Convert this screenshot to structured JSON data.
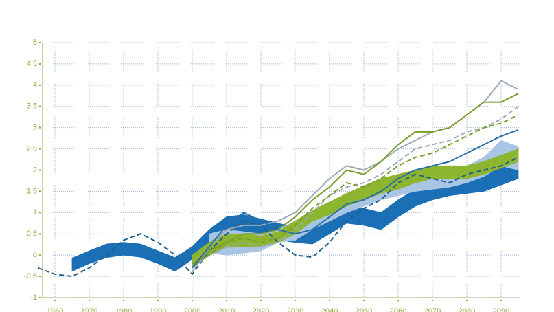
{
  "chart_data": {
    "type": "line",
    "x": [
      1955,
      1960,
      1965,
      1970,
      1975,
      1980,
      1985,
      1990,
      1995,
      2000,
      2005,
      2010,
      2015,
      2020,
      2025,
      2030,
      2035,
      2040,
      2045,
      2050,
      2055,
      2060,
      2065,
      2070,
      2075,
      2080,
      2085,
      2090,
      2095
    ],
    "xlim": [
      1956.4,
      2095.4
    ],
    "xticks": [
      1960,
      1970,
      1980,
      1990,
      2000,
      2010,
      2020,
      2030,
      2040,
      2050,
      2060,
      2070,
      2080,
      2090
    ],
    "ylim": [
      -1,
      5
    ],
    "yticks": [
      -1,
      -0.5,
      0,
      0.5,
      1,
      1.5,
      2,
      2.5,
      3,
      3.5,
      4,
      4.5,
      5
    ],
    "grid": true,
    "bands": [
      {
        "color": "#1a6fb5",
        "upper": [
          null,
          null,
          -0.07,
          0.1,
          0.26,
          0.3,
          0.26,
          0.1,
          -0.06,
          0.2,
          0.6,
          0.9,
          0.95,
          0.85,
          0.75,
          0.65,
          0.58,
          0.9,
          1.2,
          1.1,
          1.0,
          1.3,
          1.55,
          1.75,
          1.9,
          1.85,
          1.9,
          2.05,
          2.2
        ],
        "lower": [
          null,
          null,
          -0.38,
          -0.2,
          -0.06,
          0.0,
          -0.05,
          -0.2,
          -0.38,
          -0.1,
          0.25,
          0.5,
          0.55,
          0.45,
          0.35,
          0.3,
          0.26,
          0.5,
          0.75,
          0.7,
          0.6,
          0.9,
          1.15,
          1.3,
          1.4,
          1.45,
          1.5,
          1.65,
          1.8
        ]
      },
      {
        "color": "#a9c5e4",
        "upper": [
          null,
          null,
          null,
          null,
          null,
          null,
          null,
          null,
          null,
          null,
          0.5,
          0.6,
          0.55,
          0.5,
          0.6,
          0.8,
          1.0,
          1.15,
          1.35,
          1.55,
          1.7,
          1.85,
          1.9,
          1.95,
          2.0,
          2.1,
          2.3,
          2.7,
          2.55
        ],
        "lower": [
          null,
          null,
          null,
          null,
          null,
          null,
          null,
          null,
          null,
          null,
          0.05,
          0.0,
          0.05,
          0.1,
          0.3,
          0.35,
          0.6,
          0.8,
          1.0,
          1.15,
          1.3,
          1.4,
          1.5,
          1.55,
          1.6,
          1.7,
          1.85,
          2.1,
          2.0
        ]
      },
      {
        "color": "#8db52f",
        "upper": [
          null,
          null,
          null,
          null,
          null,
          null,
          null,
          null,
          null,
          0.0,
          0.3,
          0.5,
          0.5,
          0.45,
          0.55,
          0.8,
          1.05,
          1.25,
          1.45,
          1.63,
          1.8,
          1.9,
          2.0,
          2.1,
          2.1,
          2.1,
          2.2,
          2.35,
          2.5
        ],
        "lower": [
          null,
          null,
          null,
          null,
          null,
          null,
          null,
          null,
          null,
          -0.3,
          0.0,
          0.18,
          0.2,
          0.2,
          0.3,
          0.5,
          0.8,
          0.95,
          1.15,
          1.3,
          1.45,
          1.55,
          1.7,
          1.8,
          1.8,
          1.8,
          1.9,
          2.05,
          2.2
        ]
      }
    ],
    "series": [
      {
        "color": "#1f5f8b",
        "dashed": true,
        "values": [
          -0.3,
          -0.45,
          -0.5,
          -0.3,
          0.0,
          0.35,
          0.5,
          0.3,
          0.0,
          -0.45,
          0.1,
          0.5,
          0.8,
          0.7,
          0.3,
          0.0,
          -0.05,
          0.3,
          0.8,
          1.1,
          1.3,
          1.7,
          1.9,
          1.8,
          1.7,
          1.9,
          2.0,
          2.1,
          2.3
        ]
      },
      {
        "color": "#9aaab8",
        "dashed": false,
        "values": [
          null,
          null,
          null,
          null,
          null,
          null,
          null,
          null,
          null,
          -0.4,
          0.2,
          0.6,
          0.7,
          0.7,
          0.8,
          1.0,
          1.4,
          1.8,
          2.1,
          2.0,
          2.2,
          2.5,
          2.7,
          2.9,
          3.0,
          3.3,
          3.6,
          4.1,
          3.9
        ]
      },
      {
        "color": "#7a9e2e",
        "dashed": false,
        "values": [
          null,
          null,
          null,
          null,
          null,
          null,
          null,
          null,
          null,
          -0.3,
          0.1,
          0.3,
          0.5,
          0.5,
          0.6,
          0.9,
          1.3,
          1.6,
          2.0,
          1.9,
          2.2,
          2.6,
          2.9,
          2.9,
          3.0,
          3.3,
          3.6,
          3.6,
          3.8
        ]
      },
      {
        "color": "#9aaab8",
        "dashed": true,
        "values": [
          null,
          null,
          null,
          null,
          null,
          null,
          null,
          null,
          null,
          -0.3,
          0.0,
          0.2,
          0.3,
          0.2,
          0.3,
          0.6,
          1.0,
          1.4,
          1.6,
          1.7,
          1.9,
          2.2,
          2.5,
          2.6,
          2.7,
          2.9,
          3.0,
          3.2,
          3.5
        ]
      },
      {
        "color": "#7a9e2e",
        "dashed": true,
        "values": [
          null,
          null,
          null,
          null,
          null,
          null,
          null,
          null,
          null,
          -0.2,
          0.0,
          0.3,
          0.4,
          0.3,
          0.4,
          0.7,
          1.1,
          1.4,
          1.7,
          1.6,
          1.8,
          2.1,
          2.3,
          2.4,
          2.6,
          2.8,
          3.0,
          3.1,
          3.3
        ]
      },
      {
        "color": "#2a6ea8",
        "dashed": false,
        "values": [
          null,
          null,
          null,
          null,
          null,
          null,
          null,
          null,
          null,
          -0.3,
          0.2,
          0.7,
          1.0,
          0.8,
          0.6,
          0.5,
          0.6,
          0.9,
          1.2,
          1.3,
          1.5,
          1.8,
          2.0,
          2.1,
          2.2,
          2.4,
          2.6,
          2.8,
          2.95
        ]
      }
    ]
  }
}
